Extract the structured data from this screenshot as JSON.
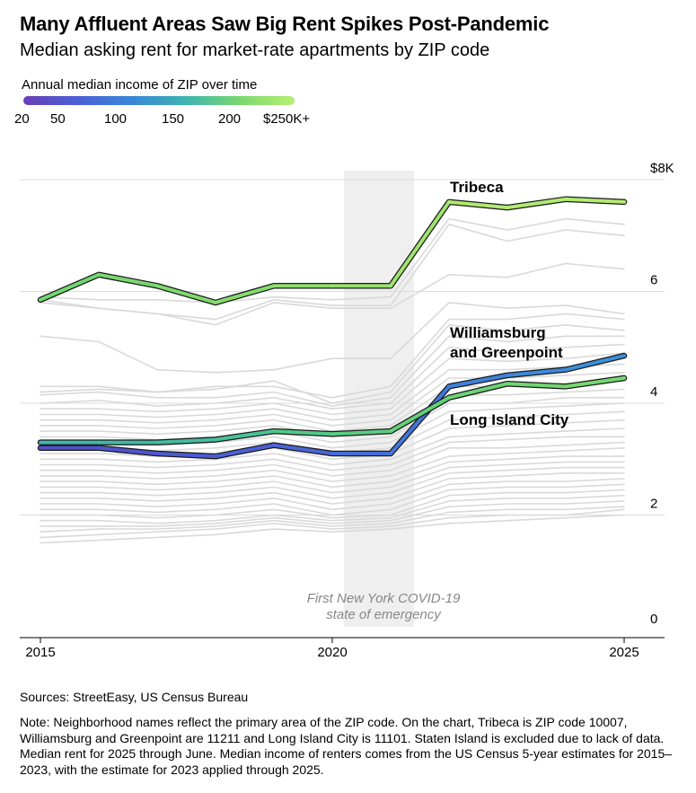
{
  "header": {
    "title": "Many Affluent Areas Saw Big Rent Spikes Post-Pandemic",
    "subtitle": "Median asking rent for market-rate apartments by ZIP code"
  },
  "legend": {
    "title": "Annual median income of ZIP over time",
    "ticks": [
      "20",
      "50",
      "100",
      "150",
      "200",
      "$250K+"
    ],
    "tick_values": [
      20,
      50,
      100,
      150,
      200,
      250
    ],
    "colors": [
      "#6a3fb5",
      "#4b5fd6",
      "#3a86d9",
      "#3fb4b0",
      "#7ad86f",
      "#b8ef72"
    ]
  },
  "footer": {
    "sources": "Sources: StreetEasy, US Census Bureau",
    "note": "Note: Neighborhood names reflect the primary area of the ZIP code. On the chart, Tribeca is ZIP code 10007, Williamsburg and Greenpoint are 11211 and Long Island City is 11101. Staten Island is excluded due to lack of data. Median rent for 2025 through June. Median income of renters comes from the US Census 5-year estimates for 2015–2023, with the estimate for 2023 applied through 2025."
  },
  "chart_data": {
    "type": "line",
    "title": "Many Affluent Areas Saw Big Rent Spikes Post-Pandemic",
    "subtitle": "Median asking rent for market-rate apartments by ZIP code",
    "x": [
      2015,
      2016,
      2017,
      2018,
      2019,
      2020,
      2021,
      2022,
      2023,
      2024,
      2025
    ],
    "x_ticks": [
      2015,
      2020,
      2025
    ],
    "x_tick_labels": [
      "2015",
      "2020",
      "2025"
    ],
    "xlim": [
      2015,
      2025
    ],
    "y_ticks": [
      0,
      2,
      4,
      6,
      8
    ],
    "y_tick_labels": [
      "0",
      "2",
      "4",
      "6",
      "$8K"
    ],
    "ylim": [
      0,
      8
    ],
    "grid": "horizontal",
    "annotation": {
      "lines": [
        "First New York COVID-19",
        "state of emergency"
      ],
      "x_start": 2020.2,
      "x_end": 2021.4
    },
    "highlighted_series": [
      {
        "name": "Tribeca",
        "label_lines": [
          "Tribeca"
        ],
        "values": [
          5.85,
          6.3,
          6.1,
          5.8,
          6.1,
          6.1,
          6.1,
          7.6,
          7.5,
          7.65,
          7.6
        ],
        "colors": [
          "#72d872",
          "#7ad86f",
          "#80da6e",
          "#85dc6e",
          "#8fde6e",
          "#98e06e",
          "#a0e270",
          "#b0ea72",
          "#b2eb72",
          "#b4ec72",
          "#b5ec72"
        ]
      },
      {
        "name": "Williamsburg and Greenpoint",
        "label_lines": [
          "Williamsburg",
          "and Greenpoint"
        ],
        "values": [
          3.2,
          3.2,
          3.1,
          3.05,
          3.25,
          3.1,
          3.1,
          4.3,
          4.5,
          4.6,
          4.85
        ],
        "colors": [
          "#5050cc",
          "#5054cf",
          "#4d5ad2",
          "#4a60d4",
          "#4866d6",
          "#456cd7",
          "#4275d8",
          "#3f80d9",
          "#3d88d9",
          "#3b8fd9",
          "#3a94d9"
        ]
      },
      {
        "name": "Long Island City",
        "label_lines": [
          "Long Island City"
        ],
        "values": [
          3.3,
          3.3,
          3.3,
          3.35,
          3.5,
          3.45,
          3.5,
          4.1,
          4.35,
          4.3,
          4.45
        ],
        "colors": [
          "#40b4ae",
          "#42b8a8",
          "#44bca2",
          "#48c296",
          "#50c888",
          "#5acc80",
          "#62d07a",
          "#6cd474",
          "#72d670",
          "#76d870",
          "#78d96f"
        ]
      }
    ],
    "background_series": [
      [
        5.9,
        5.85,
        5.85,
        5.8,
        5.9,
        5.85,
        5.9,
        7.3,
        7.1,
        7.3,
        7.2
      ],
      [
        5.85,
        5.7,
        5.6,
        5.5,
        5.85,
        5.75,
        5.75,
        7.2,
        6.9,
        7.1,
        7.0
      ],
      [
        5.8,
        5.7,
        5.6,
        5.4,
        5.8,
        5.7,
        5.7,
        6.3,
        6.25,
        6.5,
        6.4
      ],
      [
        5.2,
        5.1,
        4.6,
        4.55,
        4.6,
        4.8,
        4.8,
        5.8,
        5.7,
        5.75,
        5.6
      ],
      [
        4.3,
        4.3,
        4.2,
        4.3,
        4.3,
        4.1,
        4.3,
        5.5,
        5.5,
        5.6,
        5.5
      ],
      [
        4.2,
        4.25,
        4.2,
        4.25,
        4.4,
        4.0,
        4.2,
        5.4,
        5.3,
        5.4,
        5.3
      ],
      [
        4.15,
        4.2,
        4.1,
        4.1,
        4.2,
        3.95,
        4.1,
        5.2,
        5.1,
        5.2,
        5.2
      ],
      [
        4.0,
        4.05,
        3.95,
        4.0,
        4.1,
        3.9,
        4.0,
        5.0,
        4.9,
        5.0,
        5.05
      ],
      [
        3.9,
        3.9,
        3.85,
        3.9,
        4.0,
        3.8,
        3.9,
        4.8,
        4.75,
        4.8,
        4.9
      ],
      [
        3.8,
        3.8,
        3.75,
        3.8,
        3.9,
        3.7,
        3.8,
        4.6,
        4.6,
        4.65,
        4.7
      ],
      [
        3.7,
        3.7,
        3.65,
        3.7,
        3.8,
        3.6,
        3.7,
        4.45,
        4.45,
        4.5,
        4.55
      ],
      [
        3.6,
        3.6,
        3.55,
        3.6,
        3.7,
        3.5,
        3.6,
        4.3,
        4.3,
        4.35,
        4.4
      ],
      [
        3.5,
        3.5,
        3.45,
        3.5,
        3.6,
        3.4,
        3.5,
        4.15,
        4.15,
        4.2,
        4.25
      ],
      [
        3.4,
        3.4,
        3.35,
        3.4,
        3.5,
        3.3,
        3.4,
        4.0,
        4.0,
        4.1,
        4.1
      ],
      [
        3.3,
        3.3,
        3.25,
        3.3,
        3.4,
        3.2,
        3.3,
        3.85,
        3.9,
        3.95,
        4.0
      ],
      [
        3.2,
        3.2,
        3.15,
        3.2,
        3.3,
        3.1,
        3.2,
        3.7,
        3.75,
        3.8,
        3.85
      ],
      [
        3.1,
        3.1,
        3.05,
        3.1,
        3.2,
        3.0,
        3.1,
        3.55,
        3.6,
        3.65,
        3.7
      ],
      [
        3.0,
        3.0,
        2.95,
        3.0,
        3.1,
        2.9,
        3.0,
        3.4,
        3.45,
        3.5,
        3.55
      ],
      [
        2.9,
        2.9,
        2.85,
        2.9,
        3.0,
        2.8,
        2.9,
        3.3,
        3.35,
        3.4,
        3.4
      ],
      [
        2.8,
        2.8,
        2.75,
        2.8,
        2.9,
        2.7,
        2.8,
        3.2,
        3.2,
        3.25,
        3.3
      ],
      [
        2.7,
        2.7,
        2.65,
        2.7,
        2.8,
        2.6,
        2.7,
        3.05,
        3.1,
        3.15,
        3.2
      ],
      [
        2.6,
        2.6,
        2.55,
        2.6,
        2.7,
        2.5,
        2.6,
        2.95,
        3.0,
        3.05,
        3.05
      ],
      [
        2.5,
        2.5,
        2.45,
        2.5,
        2.6,
        2.4,
        2.5,
        2.85,
        2.9,
        2.95,
        2.95
      ],
      [
        2.4,
        2.4,
        2.35,
        2.4,
        2.5,
        2.3,
        2.4,
        2.75,
        2.8,
        2.85,
        2.85
      ],
      [
        2.3,
        2.3,
        2.25,
        2.3,
        2.4,
        2.2,
        2.3,
        2.65,
        2.7,
        2.75,
        2.75
      ],
      [
        2.2,
        2.2,
        2.15,
        2.2,
        2.3,
        2.1,
        2.2,
        2.55,
        2.6,
        2.6,
        2.65
      ],
      [
        2.1,
        2.1,
        2.05,
        2.1,
        2.2,
        2.0,
        2.1,
        2.45,
        2.5,
        2.5,
        2.55
      ],
      [
        2.0,
        2.0,
        1.95,
        2.0,
        2.1,
        1.95,
        2.0,
        2.35,
        2.4,
        2.4,
        2.45
      ],
      [
        1.9,
        1.9,
        1.85,
        1.9,
        2.0,
        1.9,
        1.95,
        2.25,
        2.3,
        2.3,
        2.35
      ],
      [
        1.8,
        1.8,
        1.8,
        1.85,
        1.95,
        1.85,
        1.9,
        2.15,
        2.2,
        2.2,
        2.25
      ],
      [
        1.7,
        1.75,
        1.75,
        1.8,
        1.9,
        1.8,
        1.85,
        2.05,
        2.1,
        2.1,
        2.15
      ],
      [
        1.6,
        1.65,
        1.7,
        1.75,
        1.85,
        1.75,
        1.8,
        1.95,
        2.0,
        2.0,
        2.1
      ],
      [
        1.5,
        1.55,
        1.6,
        1.65,
        1.75,
        1.7,
        1.75,
        1.85,
        1.9,
        1.95,
        2.0
      ]
    ]
  }
}
